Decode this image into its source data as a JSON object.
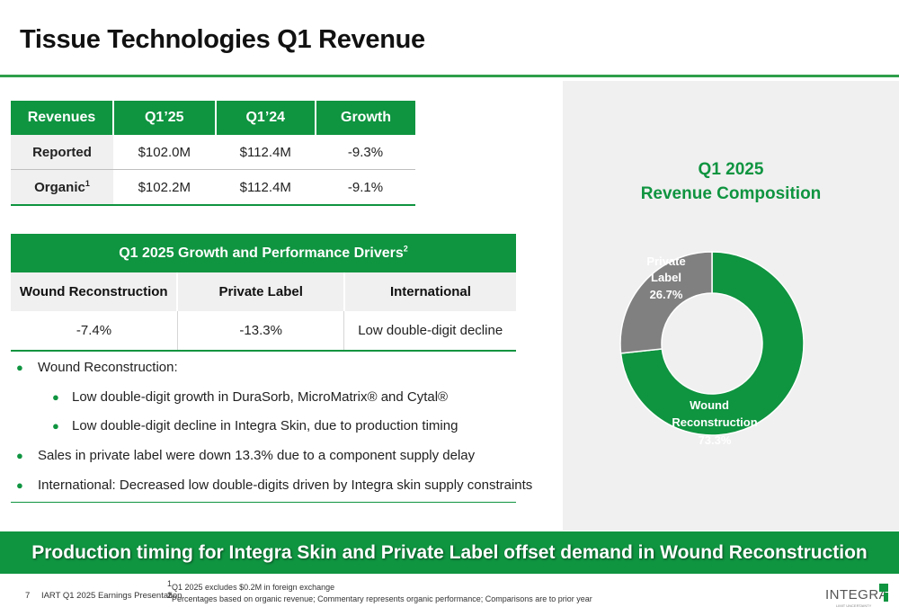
{
  "title": "Tissue Technologies Q1 Revenue",
  "revenue_table": {
    "headers": [
      "Revenues",
      "Q1’25",
      "Q1’24",
      "Growth"
    ],
    "rows": [
      {
        "label": "Reported",
        "sup": "",
        "q125": "$102.0M",
        "q124": "$112.4M",
        "growth": "-9.3%"
      },
      {
        "label": "Organic",
        "sup": "1",
        "q125": "$102.2M",
        "q124": "$112.4M",
        "growth": "-9.1%"
      }
    ]
  },
  "drivers_table": {
    "title": "Q1 2025 Growth and Performance Drivers",
    "title_sup": "2",
    "headers": [
      "Wound Reconstruction",
      "Private Label",
      "International"
    ],
    "values": [
      "-7.4%",
      "-13.3%",
      "Low double-digit decline"
    ]
  },
  "bullets": [
    {
      "level": 1,
      "text": "Wound Reconstruction:"
    },
    {
      "level": 2,
      "text": "Low double-digit growth in DuraSorb, MicroMatrix® and Cytal®"
    },
    {
      "level": 2,
      "text": "Low double-digit decline in Integra Skin, due to production timing"
    },
    {
      "level": 1,
      "text": "Sales in private label were down 13.3% due to a component supply delay"
    },
    {
      "level": 1,
      "text": "International: Decreased low double-digits driven by Integra skin supply constraints"
    }
  ],
  "chart": {
    "title_line1": "Q1 2025",
    "title_line2": "Revenue Composition",
    "labels": {
      "private_line1": "Private",
      "private_line2": "Label",
      "private_value": "26.7%",
      "wound_line1": "Wound",
      "wound_line2": "Reconstruction",
      "wound_value": "73.3%"
    }
  },
  "chart_data": {
    "type": "pie",
    "title": "Q1 2025 Revenue Composition",
    "categories": [
      "Wound Reconstruction",
      "Private Label"
    ],
    "values": [
      73.3,
      26.7
    ],
    "colors": [
      "#0f9440",
      "#808080"
    ]
  },
  "banner": "Production timing for Integra Skin and Private Label offset demand in Wound Reconstruction",
  "footer": {
    "page_number": "7",
    "presentation": "IART Q1 2025 Earnings Presentation",
    "footnote1_sup": "1",
    "footnote1": "Q1 2025 excludes $0.2M in foreign exchange",
    "footnote2_sup": "2",
    "footnote2": "Percentages based on organic revenue; Commentary represents organic performance; Comparisons are to prior year"
  },
  "logo": {
    "text": "INTEGRA",
    "tagline": "LIMIT UNCERTAINTY"
  },
  "colors": {
    "accent": "#0f9440",
    "gray_slice": "#808080",
    "panel": "#f0f0f0"
  }
}
